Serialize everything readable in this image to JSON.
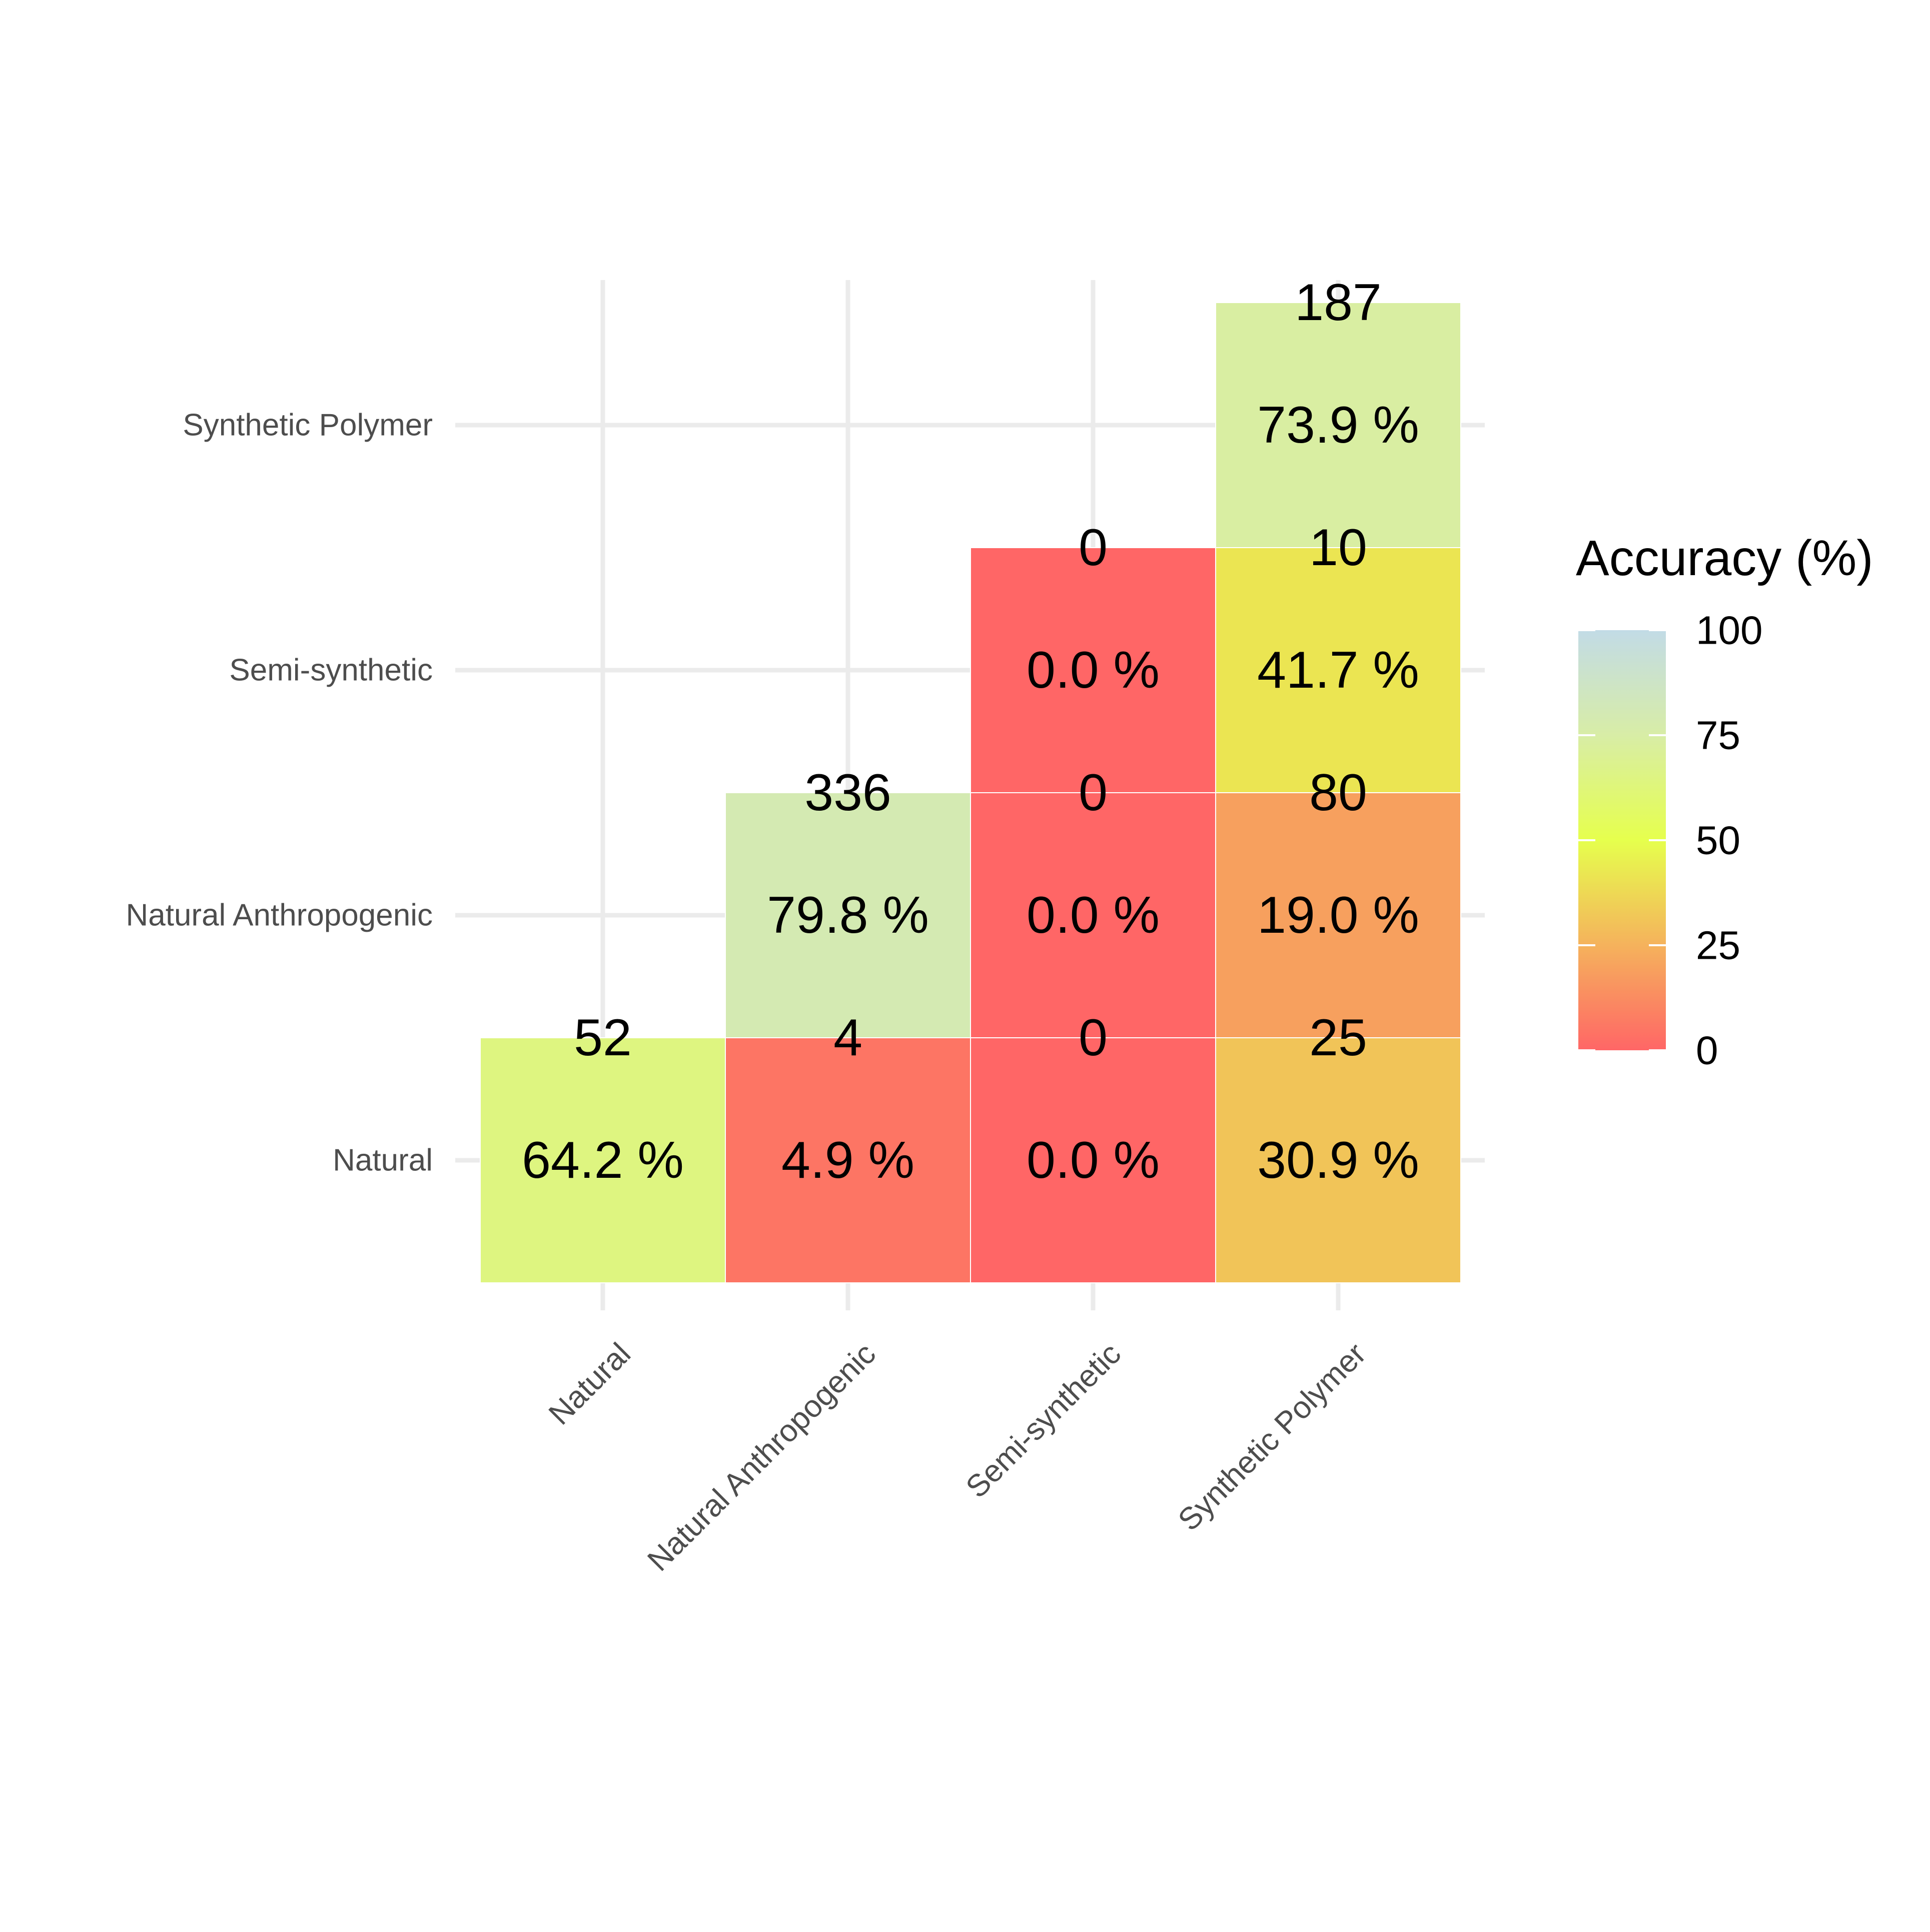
{
  "chart_data": {
    "type": "heatmap",
    "title": "",
    "xlabel": "",
    "ylabel": "",
    "x_categories": [
      "Natural",
      "Natural Anthropogenic",
      "Semi-synthetic",
      "Synthetic Polymer"
    ],
    "y_categories": [
      "Natural",
      "Natural Anthropogenic",
      "Semi-synthetic",
      "Synthetic Polymer"
    ],
    "cells": [
      {
        "x": "Natural",
        "y": "Natural",
        "count": "52",
        "percent_label": "64.2 %",
        "accuracy": 64.2
      },
      {
        "x": "Natural Anthropogenic",
        "y": "Natural",
        "count": "4",
        "percent_label": "4.9 %",
        "accuracy": 4.9
      },
      {
        "x": "Semi-synthetic",
        "y": "Natural",
        "count": "0",
        "percent_label": "0.0 %",
        "accuracy": 0.0
      },
      {
        "x": "Synthetic Polymer",
        "y": "Natural",
        "count": "25",
        "percent_label": "30.9 %",
        "accuracy": 30.9
      },
      {
        "x": "Natural Anthropogenic",
        "y": "Natural Anthropogenic",
        "count": "336",
        "percent_label": "79.8 %",
        "accuracy": 79.8
      },
      {
        "x": "Semi-synthetic",
        "y": "Natural Anthropogenic",
        "count": "0",
        "percent_label": "0.0 %",
        "accuracy": 0.0
      },
      {
        "x": "Synthetic Polymer",
        "y": "Natural Anthropogenic",
        "count": "80",
        "percent_label": "19.0 %",
        "accuracy": 19.0
      },
      {
        "x": "Semi-synthetic",
        "y": "Semi-synthetic",
        "count": "0",
        "percent_label": "0.0 %",
        "accuracy": 0.0
      },
      {
        "x": "Synthetic Polymer",
        "y": "Semi-synthetic",
        "count": "10",
        "percent_label": "41.7 %",
        "accuracy": 41.7
      },
      {
        "x": "Synthetic Polymer",
        "y": "Synthetic Polymer",
        "count": "187",
        "percent_label": "73.9 %",
        "accuracy": 73.9
      }
    ],
    "color_scale": {
      "range": [
        0,
        100
      ],
      "stops": [
        {
          "value": 0,
          "color": "#ff6666"
        },
        {
          "value": 25,
          "color": "#f5b25c"
        },
        {
          "value": 50,
          "color": "#e6ff4d"
        },
        {
          "value": 75,
          "color": "#d8eda6"
        },
        {
          "value": 100,
          "color": "#c2dbe6"
        }
      ]
    },
    "legend": {
      "title": "Accuracy (%)",
      "ticks": [
        "0",
        "25",
        "50",
        "75",
        "100"
      ],
      "position": "right"
    },
    "grid": true
  }
}
